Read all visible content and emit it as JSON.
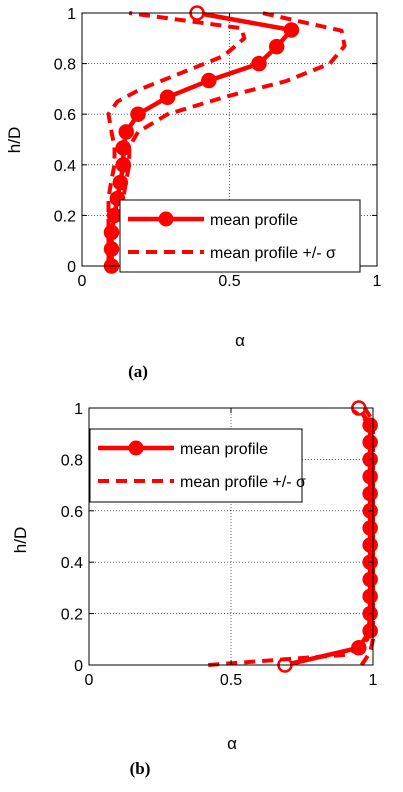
{
  "panels": [
    {
      "caption": "(a)",
      "chart_data": {
        "type": "line",
        "xlabel": "α",
        "ylabel": "h/D",
        "xlim": [
          0,
          1
        ],
        "ylim": [
          0,
          1
        ],
        "x_ticks": [
          "0",
          "0.5",
          "1"
        ],
        "y_ticks": [
          "0",
          "0.2",
          "0.4",
          "0.6",
          "0.8",
          "1"
        ],
        "grid": true,
        "legend_position": "bottom-right",
        "series": [
          {
            "name": "mean profile",
            "style": "solid-circle-markers",
            "color": "#ff0000",
            "points": [
              [
                0.1,
                0.0
              ],
              [
                0.1,
                0.067
              ],
              [
                0.1,
                0.133
              ],
              [
                0.11,
                0.2
              ],
              [
                0.12,
                0.267
              ],
              [
                0.13,
                0.33
              ],
              [
                0.14,
                0.4
              ],
              [
                0.14,
                0.467
              ],
              [
                0.15,
                0.53
              ],
              [
                0.19,
                0.6
              ],
              [
                0.29,
                0.667
              ],
              [
                0.43,
                0.733
              ],
              [
                0.6,
                0.8
              ],
              [
                0.66,
                0.867
              ],
              [
                0.71,
                0.933
              ],
              [
                0.39,
                1.0
              ]
            ]
          },
          {
            "name": "mean profile +/- σ",
            "style": "dashed",
            "color": "#ff0000",
            "points": [
              [
                0.15,
                0.0
              ],
              [
                0.14,
                0.07
              ],
              [
                0.14,
                0.14
              ],
              [
                0.14,
                0.2
              ],
              [
                0.14,
                0.27
              ],
              [
                0.15,
                0.34
              ],
              [
                0.16,
                0.4
              ],
              [
                0.16,
                0.47
              ],
              [
                0.19,
                0.53
              ],
              [
                0.29,
                0.6
              ],
              [
                0.49,
                0.67
              ],
              [
                0.69,
                0.73
              ],
              [
                0.84,
                0.8
              ],
              [
                0.89,
                0.87
              ],
              [
                0.88,
                0.93
              ],
              [
                0.61,
                1.0
              ]
            ]
          },
          {
            "name": "",
            "style": "dashed",
            "color": "#ff0000",
            "points": [
              [
                0.09,
                0.0
              ],
              [
                0.09,
                0.07
              ],
              [
                0.09,
                0.14
              ],
              [
                0.09,
                0.2
              ],
              [
                0.09,
                0.27
              ],
              [
                0.1,
                0.34
              ],
              [
                0.11,
                0.4
              ],
              [
                0.11,
                0.47
              ],
              [
                0.1,
                0.53
              ],
              [
                0.09,
                0.6
              ],
              [
                0.12,
                0.65
              ],
              [
                0.2,
                0.7
              ],
              [
                0.33,
                0.76
              ],
              [
                0.48,
                0.83
              ],
              [
                0.55,
                0.9
              ],
              [
                0.54,
                0.94
              ],
              [
                0.16,
                1.0
              ]
            ]
          }
        ]
      }
    },
    {
      "caption": "(b)",
      "chart_data": {
        "type": "line",
        "xlabel": "α",
        "ylabel": "h/D",
        "xlim": [
          0,
          1
        ],
        "ylim": [
          0,
          1
        ],
        "x_ticks": [
          "0",
          "0.5",
          "1"
        ],
        "y_ticks": [
          "0",
          "0.2",
          "0.4",
          "0.6",
          "0.8",
          "1"
        ],
        "grid": true,
        "legend_position": "top-left",
        "series": [
          {
            "name": "mean profile",
            "style": "solid-circle-markers",
            "color": "#ff0000",
            "points": [
              [
                0.69,
                0.0
              ],
              [
                0.95,
                0.067
              ],
              [
                0.99,
                0.133
              ],
              [
                0.99,
                0.2
              ],
              [
                0.99,
                0.267
              ],
              [
                0.99,
                0.333
              ],
              [
                0.99,
                0.4
              ],
              [
                0.99,
                0.467
              ],
              [
                0.99,
                0.533
              ],
              [
                0.99,
                0.6
              ],
              [
                0.99,
                0.667
              ],
              [
                0.99,
                0.733
              ],
              [
                0.99,
                0.8
              ],
              [
                0.99,
                0.867
              ],
              [
                0.99,
                0.933
              ],
              [
                0.95,
                1.0
              ]
            ]
          },
          {
            "name": "mean profile +/- σ",
            "style": "dashed",
            "color": "#ff0000",
            "points": [
              [
                0.42,
                0.0
              ],
              [
                0.91,
                0.04
              ],
              [
                0.98,
                0.1
              ],
              [
                0.99,
                0.2
              ],
              [
                0.99,
                0.4
              ],
              [
                0.99,
                0.6
              ],
              [
                0.99,
                0.8
              ],
              [
                0.99,
                0.94
              ],
              [
                0.93,
                0.99
              ]
            ]
          },
          {
            "name": "",
            "style": "dashed",
            "color": "#ff0000",
            "points": [
              [
                0.96,
                0.0
              ],
              [
                0.99,
                0.05
              ],
              [
                1.0,
                0.1
              ],
              [
                1.0,
                0.5
              ],
              [
                1.0,
                0.95
              ],
              [
                0.97,
                1.0
              ]
            ]
          }
        ]
      }
    }
  ]
}
